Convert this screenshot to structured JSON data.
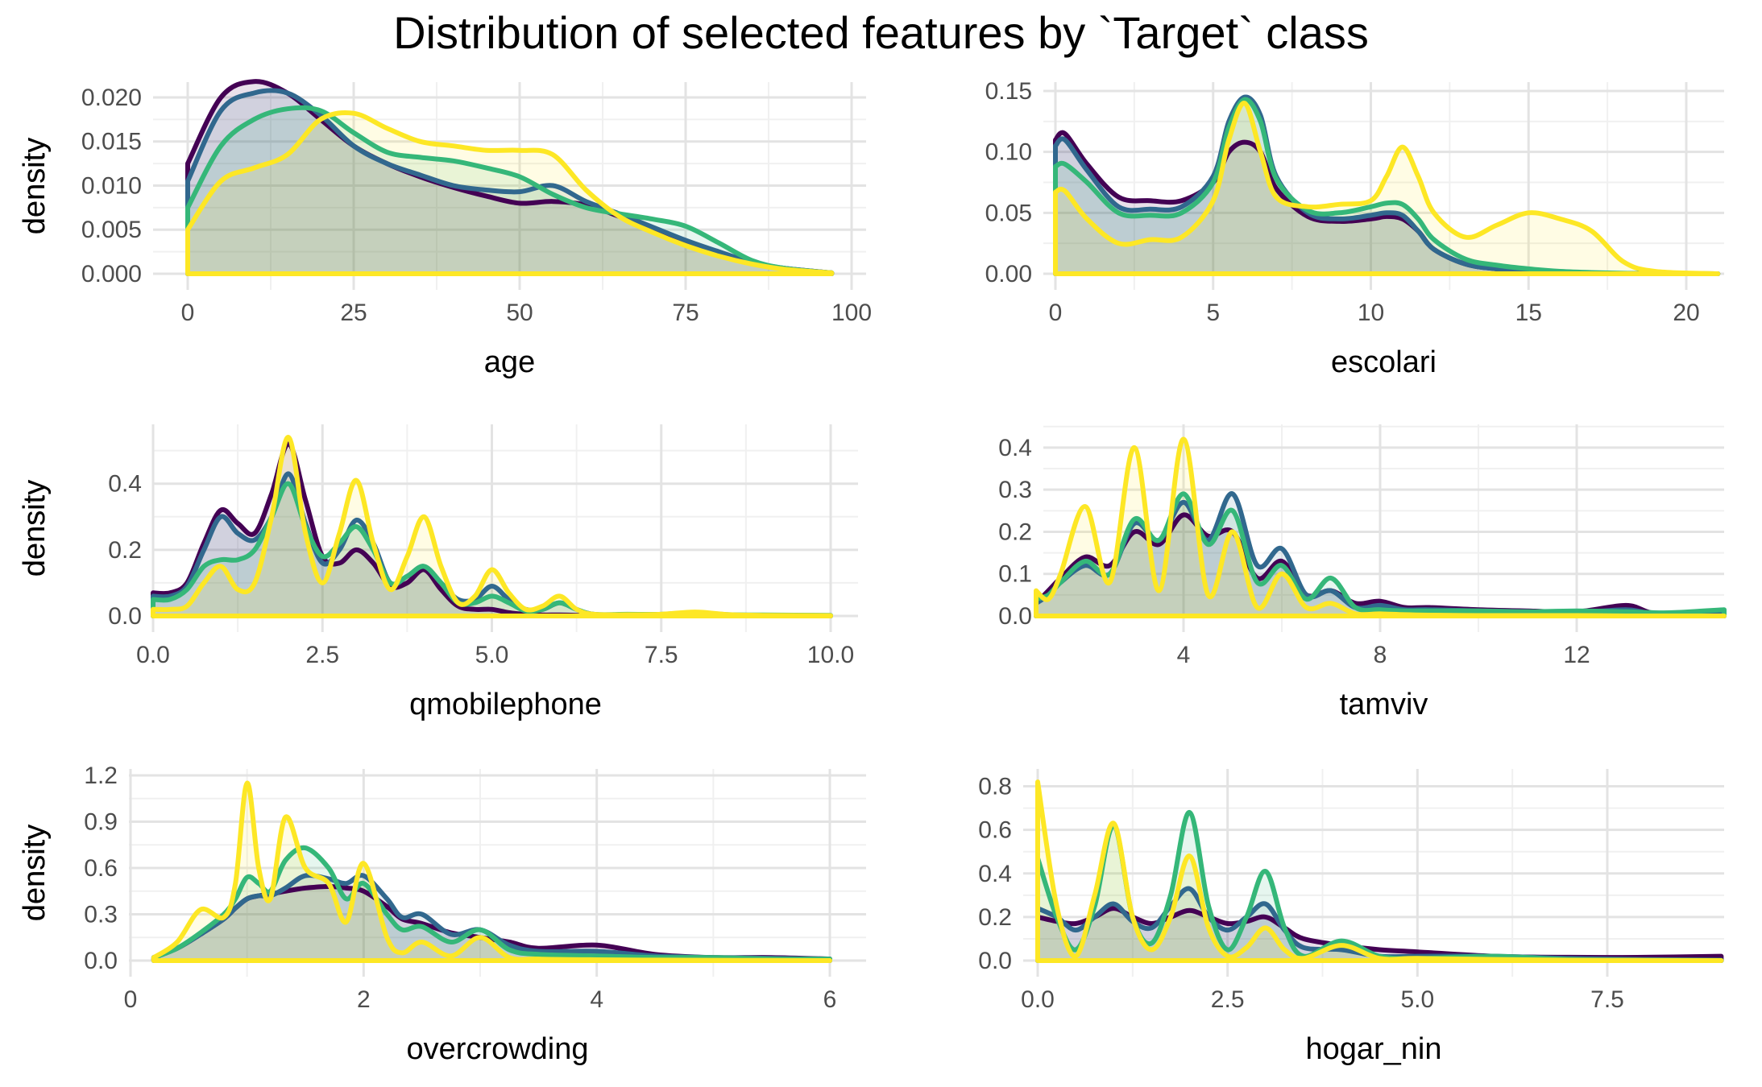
{
  "title": "Distribution of selected features by `Target` class",
  "colors": [
    "#440154",
    "#31688E",
    "#35B779",
    "#FDE725"
  ],
  "chart_data": [
    {
      "type": "area",
      "xlabel": "age",
      "ylabel": "density",
      "xlim": [
        0,
        97
      ],
      "ylim": [
        0,
        0.021
      ],
      "xticks": [
        0,
        25,
        50,
        75,
        100
      ],
      "yticks": [
        0,
        0.005,
        0.01,
        0.015,
        0.02
      ],
      "xtick_labels": [
        "0",
        "25",
        "50",
        "75",
        "100"
      ],
      "ytick_labels": [
        "0.000",
        "0.005",
        "0.010",
        "0.015",
        "0.020"
      ],
      "grid": true,
      "x": [
        0,
        5,
        10,
        15,
        20,
        25,
        30,
        35,
        40,
        45,
        50,
        55,
        60,
        65,
        70,
        75,
        80,
        85,
        90,
        97
      ],
      "series": [
        {
          "values": [
            0.0125,
            0.02,
            0.0218,
            0.0205,
            0.0175,
            0.0145,
            0.0125,
            0.011,
            0.0098,
            0.0088,
            0.008,
            0.0082,
            0.0078,
            0.0065,
            0.005,
            0.0035,
            0.0022,
            0.0012,
            0.0006,
            0.0001
          ]
        },
        {
          "values": [
            0.0105,
            0.0185,
            0.0205,
            0.0205,
            0.018,
            0.0145,
            0.0125,
            0.0112,
            0.01,
            0.0095,
            0.0093,
            0.01,
            0.0082,
            0.0068,
            0.0053,
            0.0038,
            0.0025,
            0.0013,
            0.0006,
            0.0001
          ]
        },
        {
          "values": [
            0.0075,
            0.0145,
            0.0175,
            0.0187,
            0.0185,
            0.016,
            0.0138,
            0.0132,
            0.0128,
            0.012,
            0.011,
            0.009,
            0.0075,
            0.0068,
            0.0062,
            0.0054,
            0.0035,
            0.0015,
            0.0006,
            0.0001
          ]
        },
        {
          "values": [
            0.005,
            0.0105,
            0.012,
            0.0135,
            0.0175,
            0.0182,
            0.0165,
            0.015,
            0.0145,
            0.014,
            0.014,
            0.0135,
            0.0095,
            0.0065,
            0.0047,
            0.0032,
            0.002,
            0.0011,
            0.0005,
            0.0001
          ]
        }
      ]
    },
    {
      "type": "area",
      "xlabel": "escolari",
      "ylabel": "density",
      "xlim": [
        0,
        21
      ],
      "ylim": [
        0,
        0.152
      ],
      "xticks": [
        0,
        5,
        10,
        15,
        20
      ],
      "yticks": [
        0,
        0.05,
        0.1,
        0.15
      ],
      "xtick_labels": [
        "0",
        "5",
        "10",
        "15",
        "20"
      ],
      "ytick_labels": [
        "0.00",
        "0.05",
        "0.10",
        "0.15"
      ],
      "grid": true,
      "x": [
        0,
        0.3,
        1,
        2,
        3,
        4,
        5,
        5.5,
        6,
        6.5,
        7,
        8,
        9,
        10,
        10.5,
        11,
        11.5,
        12,
        13,
        14,
        15,
        16,
        17,
        18,
        19,
        21
      ],
      "series": [
        {
          "values": [
            0.11,
            0.115,
            0.09,
            0.063,
            0.06,
            0.06,
            0.075,
            0.1,
            0.108,
            0.1,
            0.07,
            0.047,
            0.043,
            0.045,
            0.047,
            0.045,
            0.035,
            0.02,
            0.008,
            0.004,
            0.002,
            0.001,
            0.0005,
            0.0002,
            0.0001,
            0
          ]
        },
        {
          "values": [
            0.105,
            0.11,
            0.085,
            0.055,
            0.053,
            0.055,
            0.08,
            0.125,
            0.145,
            0.13,
            0.08,
            0.05,
            0.045,
            0.048,
            0.05,
            0.048,
            0.035,
            0.02,
            0.008,
            0.004,
            0.002,
            0.001,
            0.0005,
            0.0002,
            0.0001,
            0
          ]
        },
        {
          "values": [
            0.088,
            0.09,
            0.075,
            0.05,
            0.048,
            0.05,
            0.075,
            0.12,
            0.143,
            0.125,
            0.078,
            0.052,
            0.05,
            0.055,
            0.058,
            0.057,
            0.045,
            0.028,
            0.012,
            0.007,
            0.004,
            0.002,
            0.001,
            0.0004,
            0.0001,
            0
          ]
        },
        {
          "values": [
            0.067,
            0.068,
            0.045,
            0.025,
            0.028,
            0.03,
            0.06,
            0.11,
            0.14,
            0.1,
            0.063,
            0.055,
            0.057,
            0.06,
            0.08,
            0.104,
            0.08,
            0.05,
            0.03,
            0.04,
            0.05,
            0.045,
            0.035,
            0.01,
            0.002,
            0
          ]
        }
      ]
    },
    {
      "type": "area",
      "xlabel": "qmobilephone",
      "ylabel": "density",
      "xlim": [
        0,
        10
      ],
      "ylim": [
        0,
        0.56
      ],
      "xticks": [
        0,
        2.5,
        5,
        7.5,
        10
      ],
      "yticks": [
        0,
        0.2,
        0.4
      ],
      "xtick_labels": [
        "0.0",
        "2.5",
        "5.0",
        "7.5",
        "10.0"
      ],
      "ytick_labels": [
        "0.0",
        "0.2",
        "0.4"
      ],
      "grid": true,
      "x": [
        0,
        0.25,
        0.5,
        0.75,
        1,
        1.25,
        1.5,
        1.75,
        2,
        2.25,
        2.5,
        2.75,
        3,
        3.25,
        3.5,
        3.75,
        4,
        4.25,
        4.5,
        4.75,
        5,
        5.25,
        5.5,
        5.75,
        6,
        6.25,
        6.5,
        7,
        7.5,
        8,
        8.5,
        9,
        10
      ],
      "series": [
        {
          "values": [
            0.07,
            0.07,
            0.1,
            0.22,
            0.32,
            0.28,
            0.25,
            0.37,
            0.52,
            0.35,
            0.18,
            0.16,
            0.2,
            0.16,
            0.09,
            0.1,
            0.14,
            0.08,
            0.03,
            0.02,
            0.02,
            0.01,
            0.005,
            0.003,
            0.003,
            0.002,
            0.001,
            0.001,
            0.001,
            0,
            0,
            0,
            0
          ]
        },
        {
          "values": [
            0.06,
            0.06,
            0.09,
            0.2,
            0.3,
            0.25,
            0.23,
            0.3,
            0.43,
            0.28,
            0.16,
            0.2,
            0.29,
            0.22,
            0.1,
            0.12,
            0.15,
            0.1,
            0.05,
            0.05,
            0.09,
            0.05,
            0.02,
            0.02,
            0.04,
            0.02,
            0.005,
            0.002,
            0.002,
            0.002,
            0.001,
            0.001,
            0.001
          ]
        },
        {
          "values": [
            0.05,
            0.05,
            0.08,
            0.15,
            0.17,
            0.17,
            0.2,
            0.3,
            0.4,
            0.27,
            0.18,
            0.22,
            0.27,
            0.2,
            0.1,
            0.12,
            0.15,
            0.1,
            0.04,
            0.04,
            0.06,
            0.04,
            0.015,
            0.02,
            0.04,
            0.02,
            0.005,
            0.005,
            0.005,
            0.01,
            0.004,
            0.003,
            0.002
          ]
        },
        {
          "values": [
            0.02,
            0.02,
            0.03,
            0.1,
            0.15,
            0.08,
            0.1,
            0.3,
            0.54,
            0.25,
            0.1,
            0.25,
            0.41,
            0.22,
            0.08,
            0.18,
            0.3,
            0.15,
            0.04,
            0.06,
            0.14,
            0.07,
            0.02,
            0.03,
            0.06,
            0.02,
            0.005,
            0.004,
            0.005,
            0.012,
            0.004,
            0.002,
            0.001
          ]
        }
      ]
    },
    {
      "type": "area",
      "xlabel": "tamviv",
      "ylabel": "density",
      "xlim": [
        1,
        15
      ],
      "ylim": [
        0,
        0.44
      ],
      "xticks": [
        4,
        8,
        12
      ],
      "yticks": [
        0,
        0.1,
        0.2,
        0.3,
        0.4
      ],
      "xtick_labels": [
        "4",
        "8",
        "12"
      ],
      "ytick_labels": [
        "0.0",
        "0.1",
        "0.2",
        "0.3",
        "0.4"
      ],
      "grid": true,
      "x": [
        1,
        1.25,
        1.5,
        2,
        2.5,
        3,
        3.5,
        4,
        4.5,
        5,
        5.5,
        6,
        6.5,
        7,
        7.5,
        8,
        8.5,
        9,
        10,
        11,
        12,
        13,
        13.5,
        14,
        15
      ],
      "series": [
        {
          "values": [
            0.03,
            0.06,
            0.09,
            0.14,
            0.12,
            0.2,
            0.17,
            0.24,
            0.19,
            0.2,
            0.09,
            0.13,
            0.05,
            0.06,
            0.03,
            0.035,
            0.02,
            0.02,
            0.015,
            0.012,
            0.01,
            0.025,
            0.008,
            0.006,
            0.004
          ]
        },
        {
          "values": [
            0.03,
            0.05,
            0.08,
            0.12,
            0.1,
            0.22,
            0.18,
            0.27,
            0.18,
            0.29,
            0.12,
            0.16,
            0.05,
            0.06,
            0.02,
            0.025,
            0.015,
            0.015,
            0.012,
            0.01,
            0.008,
            0.015,
            0.006,
            0.005,
            0.004
          ]
        },
        {
          "values": [
            0.04,
            0.05,
            0.08,
            0.13,
            0.1,
            0.23,
            0.18,
            0.29,
            0.17,
            0.25,
            0.08,
            0.12,
            0.04,
            0.09,
            0.02,
            0.015,
            0.012,
            0.012,
            0.012,
            0.01,
            0.012,
            0.01,
            0.008,
            0.008,
            0.015
          ]
        },
        {
          "values": [
            0.06,
            0.04,
            0.1,
            0.26,
            0.08,
            0.4,
            0.06,
            0.42,
            0.05,
            0.2,
            0.02,
            0.1,
            0.02,
            0.03,
            0.005,
            0.005,
            0.003,
            0.002,
            0.001,
            0.001,
            0.001,
            0,
            0,
            0,
            0
          ]
        }
      ]
    },
    {
      "type": "area",
      "xlabel": "overcrowding",
      "ylabel": "density",
      "xlim": [
        0,
        6
      ],
      "ylim": [
        0,
        1.2
      ],
      "xticks": [
        0,
        2,
        4,
        6
      ],
      "yticks": [
        0,
        0.3,
        0.6,
        0.9,
        1.2
      ],
      "xtick_labels": [
        "0",
        "2",
        "4",
        "6"
      ],
      "ytick_labels": [
        "0.0",
        "0.3",
        "0.6",
        "0.9",
        "1.2"
      ],
      "grid": true,
      "x": [
        0.2,
        0.4,
        0.6,
        0.8,
        0.9,
        1,
        1.1,
        1.2,
        1.33,
        1.5,
        1.7,
        1.85,
        2,
        2.2,
        2.33,
        2.5,
        2.75,
        3,
        3.25,
        3.5,
        4,
        4.5,
        5,
        5.5,
        6
      ],
      "series": [
        {
          "values": [
            0.02,
            0.08,
            0.17,
            0.27,
            0.34,
            0.4,
            0.42,
            0.43,
            0.45,
            0.47,
            0.48,
            0.47,
            0.45,
            0.35,
            0.27,
            0.24,
            0.18,
            0.15,
            0.12,
            0.08,
            0.1,
            0.04,
            0.02,
            0.02,
            0.01
          ]
        },
        {
          "values": [
            0.02,
            0.08,
            0.17,
            0.27,
            0.34,
            0.4,
            0.42,
            0.42,
            0.47,
            0.55,
            0.53,
            0.5,
            0.55,
            0.4,
            0.28,
            0.3,
            0.17,
            0.2,
            0.1,
            0.06,
            0.06,
            0.03,
            0.02,
            0.015,
            0.01
          ]
        },
        {
          "values": [
            0.02,
            0.08,
            0.18,
            0.3,
            0.4,
            0.54,
            0.5,
            0.45,
            0.65,
            0.73,
            0.6,
            0.4,
            0.5,
            0.3,
            0.2,
            0.22,
            0.12,
            0.2,
            0.07,
            0.04,
            0.03,
            0.02,
            0.02,
            0.01,
            0.01
          ]
        },
        {
          "values": [
            0.02,
            0.12,
            0.33,
            0.28,
            0.5,
            1.15,
            0.6,
            0.4,
            0.93,
            0.6,
            0.5,
            0.25,
            0.63,
            0.15,
            0.05,
            0.12,
            0.03,
            0.15,
            0.02,
            0.01,
            0.005,
            0.003,
            0.002,
            0.001,
            0
          ]
        }
      ]
    },
    {
      "type": "area",
      "xlabel": "hogar_nin",
      "ylabel": "density",
      "xlim": [
        0,
        9
      ],
      "ylim": [
        0,
        0.85
      ],
      "xticks": [
        0,
        2.5,
        5,
        7.5
      ],
      "yticks": [
        0,
        0.2,
        0.4,
        0.6,
        0.8
      ],
      "xtick_labels": [
        "0.0",
        "2.5",
        "5.0",
        "7.5"
      ],
      "ytick_labels": [
        "0.0",
        "0.2",
        "0.4",
        "0.6",
        "0.8"
      ],
      "grid": true,
      "x": [
        0,
        0.25,
        0.5,
        0.75,
        1,
        1.25,
        1.5,
        1.75,
        2,
        2.25,
        2.5,
        2.75,
        3,
        3.25,
        3.5,
        4,
        4.5,
        5,
        6,
        7,
        8,
        9
      ],
      "series": [
        {
          "values": [
            0.2,
            0.18,
            0.17,
            0.2,
            0.24,
            0.2,
            0.17,
            0.2,
            0.23,
            0.2,
            0.17,
            0.18,
            0.2,
            0.15,
            0.1,
            0.07,
            0.05,
            0.04,
            0.02,
            0.015,
            0.015,
            0.02
          ]
        },
        {
          "values": [
            0.24,
            0.2,
            0.14,
            0.2,
            0.26,
            0.18,
            0.15,
            0.25,
            0.33,
            0.2,
            0.14,
            0.2,
            0.26,
            0.14,
            0.06,
            0.05,
            0.02,
            0.02,
            0.02,
            0.01,
            0.005,
            0.002
          ]
        },
        {
          "values": [
            0.47,
            0.2,
            0.05,
            0.25,
            0.62,
            0.2,
            0.08,
            0.3,
            0.68,
            0.25,
            0.05,
            0.2,
            0.41,
            0.15,
            0.02,
            0.09,
            0.02,
            0.01,
            0.02,
            0.005,
            0.002,
            0.001
          ]
        },
        {
          "values": [
            0.82,
            0.25,
            0.02,
            0.3,
            0.63,
            0.2,
            0.05,
            0.2,
            0.48,
            0.15,
            0.02,
            0.06,
            0.15,
            0.05,
            0.01,
            0.07,
            0.01,
            0.01,
            0.005,
            0.002,
            0.001,
            0
          ]
        }
      ]
    }
  ]
}
